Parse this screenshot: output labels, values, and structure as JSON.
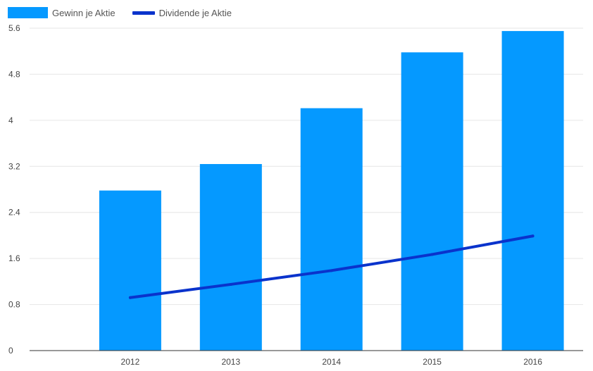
{
  "legend": {
    "bar_label": "Gewinn je Aktie",
    "line_label": "Dividende je Aktie"
  },
  "colors": {
    "bar": "#0599ff",
    "line": "#0a33cc",
    "grid": "#e6e6e6",
    "axis": "#333333"
  },
  "chart_data": {
    "type": "bar",
    "categories": [
      "2012",
      "2013",
      "2014",
      "2015",
      "2016"
    ],
    "series": [
      {
        "name": "Gewinn je Aktie",
        "type": "bar",
        "values": [
          2.78,
          3.24,
          4.21,
          5.18,
          5.55
        ]
      },
      {
        "name": "Dividende je Aktie",
        "type": "line",
        "values": [
          0.92,
          1.15,
          1.39,
          1.67,
          1.99
        ]
      }
    ],
    "y_ticks": [
      "0",
      "0.8",
      "1.6",
      "2.4",
      "3.2",
      "4",
      "4.8",
      "5.6"
    ],
    "ylim": [
      0,
      5.6
    ],
    "grid": true,
    "legend_position": "top-left",
    "xlabel": "",
    "ylabel": "",
    "title": ""
  }
}
